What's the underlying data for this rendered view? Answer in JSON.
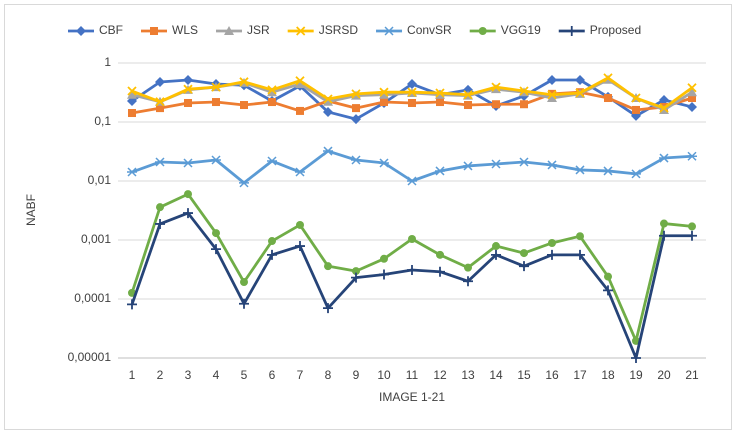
{
  "chart_data": {
    "type": "line",
    "log_y": true,
    "grid": true,
    "legend": "top",
    "y_label": "NABF",
    "x_label": "IMAGE 1-21",
    "categories": [
      "1",
      "2",
      "3",
      "4",
      "5",
      "6",
      "7",
      "8",
      "9",
      "10",
      "11",
      "12",
      "13",
      "14",
      "15",
      "16",
      "17",
      "18",
      "19",
      "20",
      "21"
    ],
    "ylim": [
      1e-05,
      1
    ],
    "yticks": [
      {
        "value": 1e-05,
        "label": "0,00001"
      },
      {
        "value": 0.0001,
        "label": "0,0001"
      },
      {
        "value": 0.001,
        "label": "0,001"
      },
      {
        "value": 0.01,
        "label": "0,01"
      },
      {
        "value": 0.1,
        "label": "0,1"
      },
      1
    ],
    "series": [
      {
        "name": "CBF",
        "color": "#4472c4",
        "marker": "diamond",
        "values": [
          0.227,
          0.476,
          0.515,
          0.44,
          0.42,
          0.227,
          0.41,
          0.148,
          0.112,
          0.21,
          0.44,
          0.29,
          0.35,
          0.187,
          0.276,
          0.515,
          0.515,
          0.266,
          0.127,
          0.236,
          0.18
        ]
      },
      {
        "name": "WLS",
        "color": "#ed7d31",
        "marker": "square",
        "values": [
          0.142,
          0.172,
          0.21,
          0.218,
          0.194,
          0.218,
          0.154,
          0.227,
          0.172,
          0.218,
          0.21,
          0.218,
          0.194,
          0.2,
          0.2,
          0.3,
          0.32,
          0.255,
          0.16,
          0.18,
          0.255
        ]
      },
      {
        "name": "JSR",
        "color": "#a5a5a5",
        "marker": "triangle",
        "values": [
          0.29,
          0.22,
          0.35,
          0.39,
          0.46,
          0.32,
          0.44,
          0.22,
          0.28,
          0.29,
          0.31,
          0.29,
          0.28,
          0.36,
          0.32,
          0.255,
          0.3,
          0.52,
          0.255,
          0.16,
          0.32
        ]
      },
      {
        "name": "JSRSD",
        "color": "#ffc000",
        "marker": "x",
        "values": [
          0.335,
          0.22,
          0.36,
          0.39,
          0.48,
          0.35,
          0.5,
          0.245,
          0.3,
          0.32,
          0.32,
          0.31,
          0.29,
          0.39,
          0.335,
          0.29,
          0.31,
          0.56,
          0.255,
          0.172,
          0.38
        ]
      },
      {
        "name": "ConvSR",
        "color": "#5b9bd5",
        "marker": "star",
        "values": [
          0.0142,
          0.021,
          0.0202,
          0.0227,
          0.0093,
          0.0218,
          0.0142,
          0.0322,
          0.0227,
          0.0202,
          0.01,
          0.0148,
          0.018,
          0.0194,
          0.021,
          0.0187,
          0.0154,
          0.0148,
          0.0132,
          0.0245,
          0.0263
        ]
      },
      {
        "name": "VGG19",
        "color": "#70ad47",
        "marker": "circle",
        "values": [
          0.000127,
          0.0036,
          0.006,
          0.00131,
          0.000194,
          0.00096,
          0.0018,
          0.00036,
          0.000297,
          0.00048,
          0.00104,
          0.00056,
          0.00034,
          0.00079,
          0.0006,
          0.00089,
          0.00116,
          0.00024,
          1.95e-05,
          0.0019,
          0.0017
        ]
      },
      {
        "name": "Proposed",
        "color": "#264478",
        "marker": "plus",
        "values": [
          8.1e-05,
          0.00187,
          0.00286,
          0.0007,
          8.3e-05,
          0.00056,
          0.00079,
          7e-05,
          0.00023,
          0.00026,
          0.00031,
          0.00029,
          0.0002,
          0.00056,
          0.00036,
          0.00056,
          0.00056,
          0.00014,
          1e-05,
          0.00118,
          0.00118
        ]
      }
    ]
  }
}
